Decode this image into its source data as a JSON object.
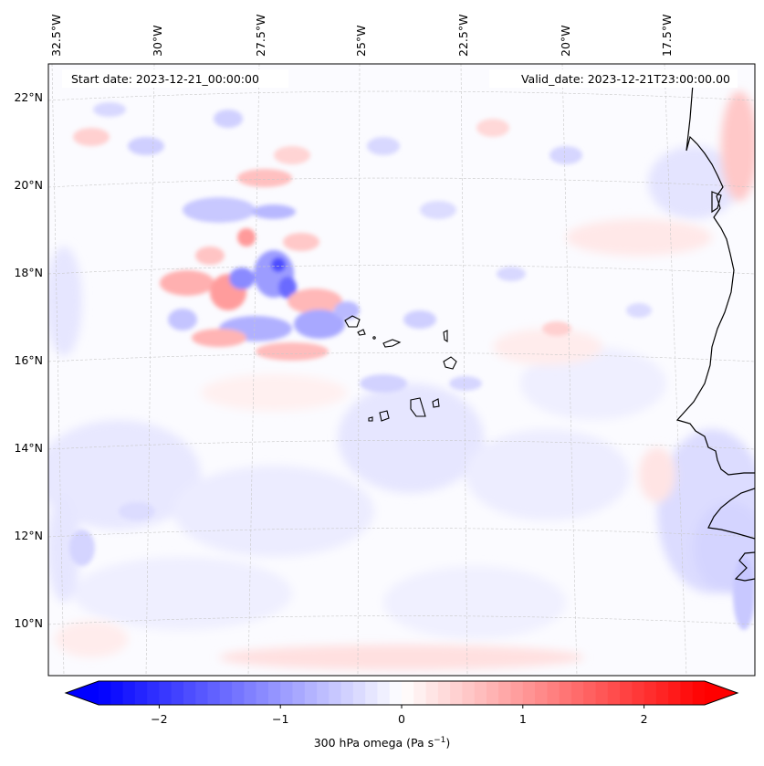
{
  "map": {
    "start_date": "Start date: 2023-12-21_00:00:00",
    "valid_date": "Valid_date: 2023-12-21T23:00:00.00",
    "lon_labels": [
      "32.5°W",
      "30°W",
      "27.5°W",
      "25°W",
      "22.5°W",
      "20°W",
      "17.5°W"
    ],
    "lat_labels": [
      "22°N",
      "20°N",
      "18°N",
      "16°N",
      "14°N",
      "12°N",
      "10°N"
    ]
  },
  "colorbar": {
    "label_main": "300 hPa omega (Pa s",
    "label_exp": "−1",
    "label_close": ")",
    "ticks": [
      "−2",
      "−1",
      "0",
      "1",
      "2"
    ],
    "tick_values": [
      -2,
      -1,
      0,
      1,
      2
    ],
    "range": [
      -2.5,
      2.5
    ],
    "cmap": "bwr",
    "color_min": "#0000ff",
    "color_mid": "#ffffff",
    "color_max": "#ff0000"
  }
}
